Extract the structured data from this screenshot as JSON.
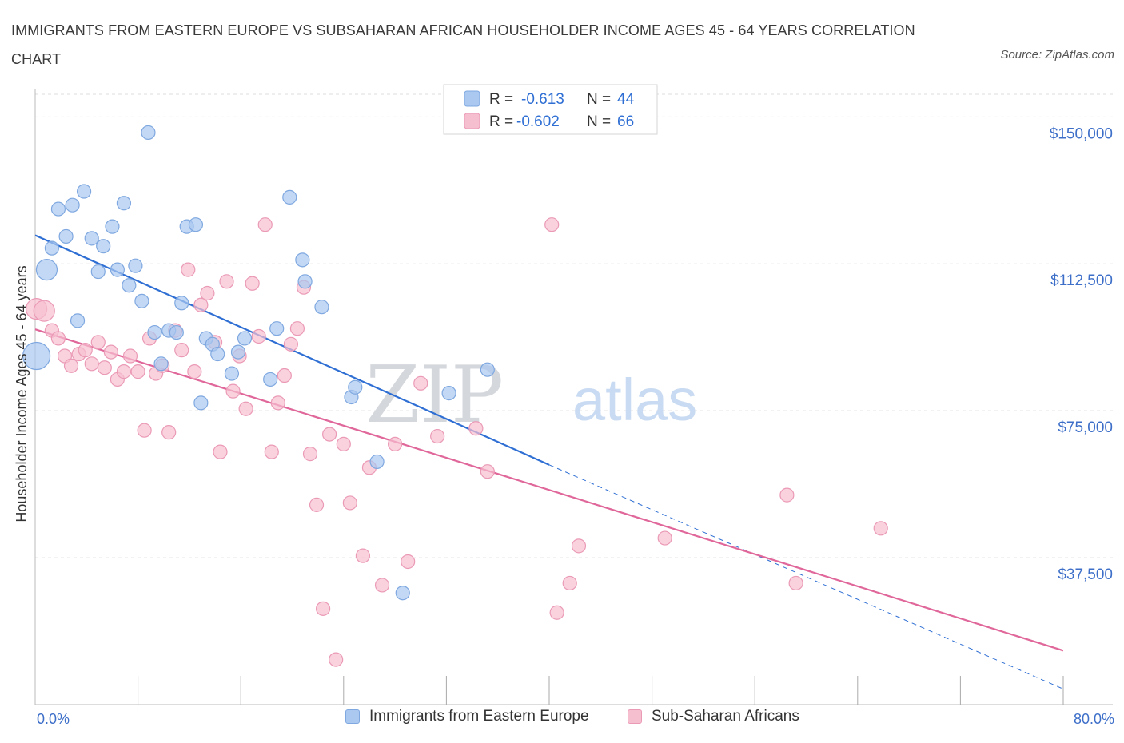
{
  "title": "IMMIGRANTS FROM EASTERN EUROPE VS SUBSAHARAN AFRICAN HOUSEHOLDER INCOME AGES 45 - 64 YEARS CORRELATION CHART",
  "source": "Source: ZipAtlas.com",
  "watermark": {
    "zip": "ZIP",
    "atlas": "atlas"
  },
  "colors": {
    "blue_fill": "#aac8f0",
    "blue_stroke": "#7fa8e0",
    "blue_line": "#2f6fd4",
    "pink_fill": "#f6bfd0",
    "pink_stroke": "#eb9ab6",
    "pink_line": "#e0679a",
    "axis_text": "#3d6fc9",
    "grid": "#dddddd"
  },
  "legend": {
    "rows": [
      {
        "r_label": "R =",
        "r_value": "-0.613",
        "n_label": "N =",
        "n_value": "44"
      },
      {
        "r_label": "R =",
        "r_value": "-0.602",
        "n_label": "N =",
        "n_value": "66"
      }
    ]
  },
  "bottom_legend": [
    "Immigrants from Eastern Europe",
    "Sub-Saharan Africans"
  ],
  "x_axis": {
    "min_label": "0.0%",
    "max_label": "80.0%"
  },
  "chart_data": {
    "type": "scatter",
    "title": "IMMIGRANTS FROM EASTERN EUROPE VS SUBSAHARAN AFRICAN HOUSEHOLDER INCOME AGES 45 - 64 YEARS CORRELATION CHART",
    "xlabel": "",
    "ylabel": "Householder Income Ages 45 - 64 years",
    "xlim": [
      0,
      80
    ],
    "ylim": [
      0,
      157000
    ],
    "x_unit": "%",
    "yticks": [
      37500,
      75000,
      112500,
      150000
    ],
    "ytick_labels": [
      "$37,500",
      "$75,000",
      "$112,500",
      "$150,000"
    ],
    "grid": "horizontal dashed",
    "legend_position": "top-center",
    "series": [
      {
        "name": "Immigrants from Eastern Europe",
        "color": "blue",
        "R": -0.613,
        "N": 44,
        "trend": {
          "x0": 0,
          "y0": 119800,
          "x1": 40,
          "y1": 61200,
          "dashed_to_x": 80,
          "dashed_to_y": 4000
        },
        "points": [
          {
            "x": 0.1,
            "y": 89000,
            "big": 2
          },
          {
            "x": 0.9,
            "y": 111000,
            "big": 1
          },
          {
            "x": 1.3,
            "y": 116500
          },
          {
            "x": 1.8,
            "y": 126500
          },
          {
            "x": 2.4,
            "y": 119500
          },
          {
            "x": 2.9,
            "y": 127500
          },
          {
            "x": 3.3,
            "y": 98000
          },
          {
            "x": 3.8,
            "y": 131000
          },
          {
            "x": 4.4,
            "y": 119000
          },
          {
            "x": 4.9,
            "y": 110500
          },
          {
            "x": 5.3,
            "y": 117000
          },
          {
            "x": 6.0,
            "y": 122000
          },
          {
            "x": 6.4,
            "y": 111000
          },
          {
            "x": 6.9,
            "y": 128000
          },
          {
            "x": 7.3,
            "y": 107000
          },
          {
            "x": 7.8,
            "y": 112000
          },
          {
            "x": 8.3,
            "y": 103000
          },
          {
            "x": 8.8,
            "y": 146000
          },
          {
            "x": 9.3,
            "y": 95000
          },
          {
            "x": 9.8,
            "y": 87000
          },
          {
            "x": 10.4,
            "y": 95500
          },
          {
            "x": 11.0,
            "y": 95000
          },
          {
            "x": 11.4,
            "y": 102500
          },
          {
            "x": 11.8,
            "y": 122000
          },
          {
            "x": 12.5,
            "y": 122500
          },
          {
            "x": 12.9,
            "y": 77000
          },
          {
            "x": 13.3,
            "y": 93500
          },
          {
            "x": 13.8,
            "y": 92000
          },
          {
            "x": 14.2,
            "y": 89500
          },
          {
            "x": 15.3,
            "y": 84500
          },
          {
            "x": 15.8,
            "y": 90000
          },
          {
            "x": 16.3,
            "y": 93500
          },
          {
            "x": 18.3,
            "y": 83000
          },
          {
            "x": 18.8,
            "y": 96000
          },
          {
            "x": 19.8,
            "y": 129500
          },
          {
            "x": 20.8,
            "y": 113500
          },
          {
            "x": 21.0,
            "y": 108000
          },
          {
            "x": 22.3,
            "y": 101500
          },
          {
            "x": 24.6,
            "y": 78500
          },
          {
            "x": 24.9,
            "y": 81000
          },
          {
            "x": 26.6,
            "y": 62000
          },
          {
            "x": 28.6,
            "y": 28500
          },
          {
            "x": 32.2,
            "y": 79500
          },
          {
            "x": 35.2,
            "y": 85500
          }
        ]
      },
      {
        "name": "Sub-Saharan Africans",
        "color": "pink",
        "R": -0.602,
        "N": 66,
        "trend": {
          "x0": 0,
          "y0": 95800,
          "x1": 80,
          "y1": 13800
        },
        "points": [
          {
            "x": 0.1,
            "y": 101000,
            "big": 1
          },
          {
            "x": 0.7,
            "y": 100500,
            "big": 1
          },
          {
            "x": 1.3,
            "y": 95500
          },
          {
            "x": 1.8,
            "y": 93500
          },
          {
            "x": 2.3,
            "y": 89000
          },
          {
            "x": 2.8,
            "y": 86500
          },
          {
            "x": 3.4,
            "y": 89500
          },
          {
            "x": 3.9,
            "y": 90500
          },
          {
            "x": 4.4,
            "y": 87000
          },
          {
            "x": 4.9,
            "y": 92500
          },
          {
            "x": 5.4,
            "y": 86000
          },
          {
            "x": 5.9,
            "y": 90000
          },
          {
            "x": 6.4,
            "y": 83000
          },
          {
            "x": 6.9,
            "y": 85000
          },
          {
            "x": 7.4,
            "y": 89000
          },
          {
            "x": 8.0,
            "y": 85000
          },
          {
            "x": 8.5,
            "y": 70000
          },
          {
            "x": 8.9,
            "y": 93500
          },
          {
            "x": 9.4,
            "y": 84500
          },
          {
            "x": 9.9,
            "y": 86500
          },
          {
            "x": 10.4,
            "y": 69500
          },
          {
            "x": 10.9,
            "y": 95500
          },
          {
            "x": 11.4,
            "y": 90500
          },
          {
            "x": 11.9,
            "y": 111000
          },
          {
            "x": 12.4,
            "y": 85000
          },
          {
            "x": 12.9,
            "y": 102000
          },
          {
            "x": 13.4,
            "y": 105000
          },
          {
            "x": 14.0,
            "y": 92500
          },
          {
            "x": 14.4,
            "y": 64500
          },
          {
            "x": 14.9,
            "y": 108000
          },
          {
            "x": 15.4,
            "y": 80000
          },
          {
            "x": 15.9,
            "y": 89000
          },
          {
            "x": 16.4,
            "y": 75500
          },
          {
            "x": 16.9,
            "y": 107500
          },
          {
            "x": 17.4,
            "y": 94000
          },
          {
            "x": 17.9,
            "y": 122500
          },
          {
            "x": 18.4,
            "y": 64500
          },
          {
            "x": 18.9,
            "y": 77000
          },
          {
            "x": 19.4,
            "y": 84000
          },
          {
            "x": 19.9,
            "y": 92000
          },
          {
            "x": 20.4,
            "y": 96000
          },
          {
            "x": 20.9,
            "y": 106500
          },
          {
            "x": 21.4,
            "y": 64000
          },
          {
            "x": 21.9,
            "y": 51000
          },
          {
            "x": 22.4,
            "y": 24500
          },
          {
            "x": 22.9,
            "y": 69000
          },
          {
            "x": 23.4,
            "y": 11500
          },
          {
            "x": 24.0,
            "y": 66500
          },
          {
            "x": 24.5,
            "y": 51500
          },
          {
            "x": 25.5,
            "y": 38000
          },
          {
            "x": 26.0,
            "y": 60500
          },
          {
            "x": 27.0,
            "y": 30500
          },
          {
            "x": 28.0,
            "y": 66500
          },
          {
            "x": 29.0,
            "y": 36500
          },
          {
            "x": 30.0,
            "y": 82000
          },
          {
            "x": 31.3,
            "y": 68500
          },
          {
            "x": 34.3,
            "y": 70500
          },
          {
            "x": 35.2,
            "y": 59500
          },
          {
            "x": 40.2,
            "y": 122500
          },
          {
            "x": 40.6,
            "y": 23500
          },
          {
            "x": 41.6,
            "y": 31000
          },
          {
            "x": 42.3,
            "y": 40500
          },
          {
            "x": 49.0,
            "y": 42500
          },
          {
            "x": 58.5,
            "y": 53500
          },
          {
            "x": 59.2,
            "y": 31000
          },
          {
            "x": 65.8,
            "y": 45000
          }
        ]
      }
    ]
  }
}
